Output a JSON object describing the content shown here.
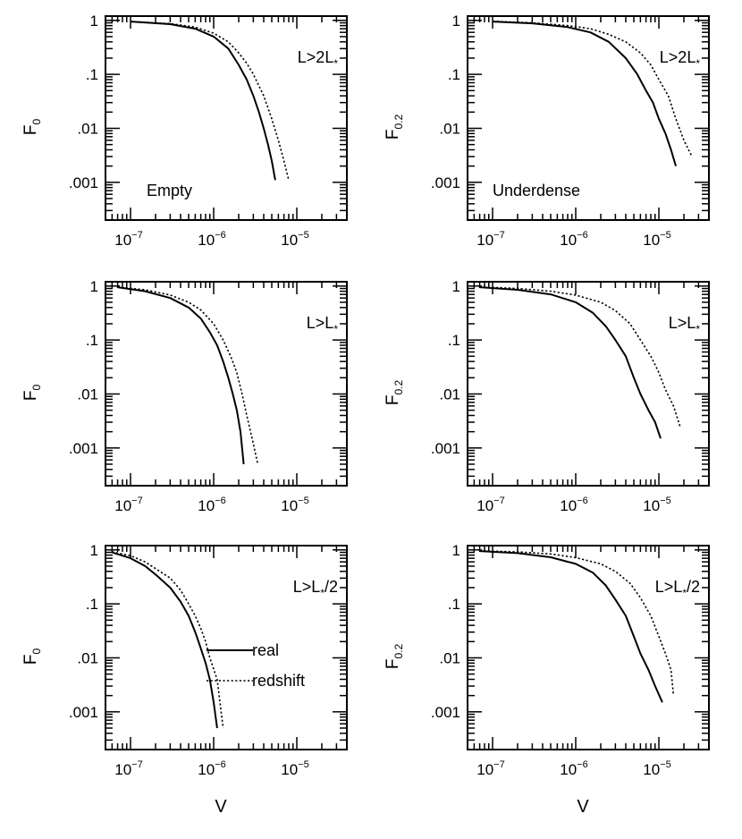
{
  "shared": {
    "x_tick_labels": [
      {
        "base": "10",
        "exp": "−7",
        "value": 1e-07
      },
      {
        "base": "10",
        "exp": "−6",
        "value": 1e-06
      },
      {
        "base": "10",
        "exp": "−5",
        "value": 1e-05
      }
    ],
    "y_tick_labels": [
      {
        "text": "1",
        "value": 1
      },
      {
        "text": ".1",
        "value": 0.1
      },
      {
        "text": ".01",
        "value": 0.01
      },
      {
        "text": ".001",
        "value": 0.001
      }
    ],
    "xlabel": "V",
    "ylabel_left": {
      "base": "F",
      "sub": "0"
    },
    "ylabel_right": {
      "base": "F",
      "sub": "0.2"
    },
    "legend": [
      {
        "label": "real",
        "style": "solid"
      },
      {
        "label": "redshift",
        "style": "dotted"
      }
    ]
  },
  "chart_data": [
    {
      "type": "line",
      "xscale": "log",
      "yscale": "log",
      "xlim": [
        5e-08,
        4e-05
      ],
      "ylim": [
        0.0002,
        1.2
      ],
      "annotations": [
        {
          "base": "L>2L",
          "sub": "*"
        },
        {
          "text": "Empty"
        }
      ],
      "series": [
        {
          "name": "real",
          "style": "solid",
          "x": [
            1e-07,
            3e-07,
            6e-07,
            1e-06,
            1.5e-06,
            2e-06,
            2.5e-06,
            3e-06,
            3.5e-06,
            4e-06,
            4.5e-06,
            5e-06,
            5.5e-06
          ],
          "y": [
            0.95,
            0.85,
            0.7,
            0.5,
            0.3,
            0.15,
            0.08,
            0.04,
            0.02,
            0.01,
            0.005,
            0.0025,
            0.0011
          ]
        },
        {
          "name": "redshift",
          "style": "dotted",
          "x": [
            1e-07,
            3e-07,
            6e-07,
            1e-06,
            1.5e-06,
            2e-06,
            2.5e-06,
            3e-06,
            4e-06,
            5e-06,
            6e-06,
            7e-06,
            8e-06
          ],
          "y": [
            0.95,
            0.87,
            0.75,
            0.58,
            0.4,
            0.25,
            0.16,
            0.1,
            0.04,
            0.015,
            0.006,
            0.0025,
            0.0011
          ]
        }
      ]
    },
    {
      "type": "line",
      "xscale": "log",
      "yscale": "log",
      "xlim": [
        5e-08,
        4e-05
      ],
      "ylim": [
        0.0002,
        1.2
      ],
      "annotations": [
        {
          "base": "L>2L",
          "sub": "*"
        },
        {
          "text": "Underdense"
        }
      ],
      "series": [
        {
          "name": "real",
          "style": "solid",
          "x": [
            1e-07,
            3e-07,
            8e-07,
            1.5e-06,
            2.5e-06,
            4e-06,
            5.5e-06,
            7e-06,
            8.5e-06,
            1e-05,
            1.2e-05,
            1.4e-05,
            1.6e-05
          ],
          "y": [
            0.95,
            0.88,
            0.75,
            0.6,
            0.4,
            0.2,
            0.1,
            0.05,
            0.03,
            0.015,
            0.008,
            0.004,
            0.002
          ]
        },
        {
          "name": "redshift",
          "style": "dotted",
          "x": [
            1e-07,
            3e-07,
            8e-07,
            1.5e-06,
            2.5e-06,
            4e-06,
            6e-06,
            8e-06,
            1e-05,
            1.3e-05,
            1.6e-05,
            2e-05,
            2.5e-05
          ],
          "y": [
            0.96,
            0.9,
            0.8,
            0.7,
            0.55,
            0.4,
            0.25,
            0.15,
            0.08,
            0.04,
            0.015,
            0.006,
            0.003
          ]
        }
      ]
    },
    {
      "type": "line",
      "xscale": "log",
      "yscale": "log",
      "xlim": [
        5e-08,
        4e-05
      ],
      "ylim": [
        0.0002,
        1.2
      ],
      "annotations": [
        {
          "base": "L>L",
          "sub": "*"
        }
      ],
      "series": [
        {
          "name": "real",
          "style": "solid",
          "x": [
            7e-08,
            1.5e-07,
            3e-07,
            5e-07,
            7e-07,
            9e-07,
            1.1e-06,
            1.3e-06,
            1.5e-06,
            1.7e-06,
            1.9e-06,
            2.1e-06,
            2.3e-06
          ],
          "y": [
            0.95,
            0.8,
            0.6,
            0.4,
            0.25,
            0.14,
            0.08,
            0.04,
            0.02,
            0.01,
            0.005,
            0.002,
            0.0005
          ]
        },
        {
          "name": "redshift",
          "style": "dotted",
          "x": [
            7e-08,
            1.5e-07,
            3e-07,
            5e-07,
            7e-07,
            1e-06,
            1.3e-06,
            1.6e-06,
            1.9e-06,
            2.2e-06,
            2.5e-06,
            2.9e-06,
            3.4e-06
          ],
          "y": [
            0.95,
            0.85,
            0.68,
            0.5,
            0.36,
            0.2,
            0.1,
            0.05,
            0.025,
            0.01,
            0.004,
            0.0015,
            0.0005
          ]
        }
      ]
    },
    {
      "type": "line",
      "xscale": "log",
      "yscale": "log",
      "xlim": [
        5e-08,
        4e-05
      ],
      "ylim": [
        0.0002,
        1.2
      ],
      "annotations": [
        {
          "base": "L>L",
          "sub": "*"
        }
      ],
      "series": [
        {
          "name": "real",
          "style": "solid",
          "x": [
            7e-08,
            2e-07,
            5e-07,
            1e-06,
            1.6e-06,
            2.3e-06,
            3e-06,
            4e-06,
            5e-06,
            6e-06,
            7.5e-06,
            9e-06,
            1.05e-05
          ],
          "y": [
            0.95,
            0.85,
            0.7,
            0.5,
            0.32,
            0.18,
            0.1,
            0.05,
            0.02,
            0.01,
            0.005,
            0.003,
            0.0015
          ]
        },
        {
          "name": "redshift",
          "style": "dotted",
          "x": [
            7e-08,
            2e-07,
            5e-07,
            1e-06,
            2e-06,
            3e-06,
            4.5e-06,
            6e-06,
            8e-06,
            1e-05,
            1.2e-05,
            1.5e-05,
            1.8e-05
          ],
          "y": [
            0.96,
            0.9,
            0.8,
            0.68,
            0.5,
            0.35,
            0.2,
            0.1,
            0.05,
            0.025,
            0.012,
            0.006,
            0.0025
          ]
        }
      ]
    },
    {
      "type": "line",
      "xscale": "log",
      "yscale": "log",
      "xlim": [
        5e-08,
        4e-05
      ],
      "ylim": [
        0.0002,
        1.2
      ],
      "annotations": [
        {
          "base": "L>L",
          "sub": "*",
          "tail": "/2"
        }
      ],
      "legend_shown": true,
      "series": [
        {
          "name": "real",
          "style": "solid",
          "x": [
            6e-08,
            1e-07,
            1.5e-07,
            2e-07,
            3e-07,
            4e-07,
            5e-07,
            6e-07,
            7e-07,
            8e-07,
            9e-07,
            1e-06,
            1.1e-06
          ],
          "y": [
            0.9,
            0.7,
            0.5,
            0.35,
            0.2,
            0.11,
            0.06,
            0.03,
            0.015,
            0.008,
            0.004,
            0.0015,
            0.0005
          ]
        },
        {
          "name": "redshift",
          "style": "dotted",
          "x": [
            6e-08,
            1e-07,
            1.5e-07,
            2e-07,
            3e-07,
            4e-07,
            5e-07,
            6e-07,
            7e-07,
            8e-07,
            9e-07,
            1.1e-06,
            1.3e-06
          ],
          "y": [
            0.92,
            0.78,
            0.6,
            0.45,
            0.3,
            0.18,
            0.1,
            0.06,
            0.035,
            0.02,
            0.01,
            0.004,
            0.0005
          ]
        }
      ]
    },
    {
      "type": "line",
      "xscale": "log",
      "yscale": "log",
      "xlim": [
        5e-08,
        4e-05
      ],
      "ylim": [
        0.0002,
        1.2
      ],
      "annotations": [
        {
          "base": "L>L",
          "sub": "*",
          "tail": "/2"
        }
      ],
      "series": [
        {
          "name": "real",
          "style": "solid",
          "x": [
            7e-08,
            2e-07,
            5e-07,
            1e-06,
            1.6e-06,
            2.3e-06,
            3e-06,
            4e-06,
            5e-06,
            6e-06,
            7.5e-06,
            9e-06,
            1.1e-05
          ],
          "y": [
            0.95,
            0.87,
            0.73,
            0.55,
            0.38,
            0.22,
            0.12,
            0.06,
            0.025,
            0.012,
            0.006,
            0.003,
            0.0015
          ]
        },
        {
          "name": "redshift",
          "style": "dotted",
          "x": [
            7e-08,
            2e-07,
            5e-07,
            1e-06,
            2e-06,
            3e-06,
            4.5e-06,
            6e-06,
            8e-06,
            1e-05,
            1.2e-05,
            1.4e-05,
            1.5e-05
          ],
          "y": [
            0.96,
            0.92,
            0.84,
            0.72,
            0.55,
            0.4,
            0.24,
            0.13,
            0.06,
            0.025,
            0.012,
            0.006,
            0.002
          ]
        }
      ]
    }
  ]
}
